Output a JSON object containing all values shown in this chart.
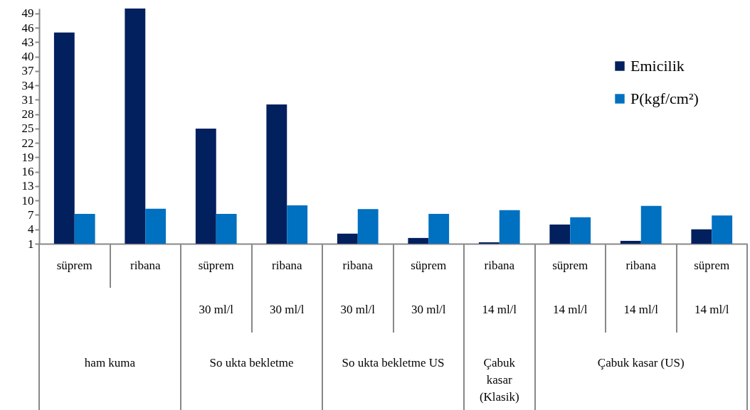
{
  "chart_data": {
    "type": "bar",
    "categories": [
      "süprem",
      "ribana",
      "süprem\n30 ml/l",
      "ribana\n30 ml/l",
      "ribana\n30 ml/l",
      "süprem\n30 ml/l",
      "ribana\n14 ml/l",
      "süprem\n14 ml/l",
      "ribana\n14 ml/l",
      "süprem\n14 ml/l"
    ],
    "series": [
      {
        "name": "Emicilik",
        "color": "#021f5e",
        "values": [
          45,
          50,
          25,
          30,
          3.1,
          2.2,
          1.3,
          5,
          1.6,
          4
        ]
      },
      {
        "name": "P(kgf/cm²)",
        "color": "#0070c0",
        "values": [
          7.2,
          8.3,
          7.2,
          9,
          8.2,
          7.2,
          8,
          6.5,
          8.9,
          6.9
        ]
      }
    ],
    "ylim": [
      1,
      50
    ],
    "yticks": [
      1,
      4,
      7,
      10,
      13,
      16,
      19,
      22,
      25,
      28,
      31,
      34,
      37,
      40,
      43,
      46,
      49
    ],
    "annotations": [
      "ham kuma",
      "So  ukta bekletme",
      "So  ukta bekletme US",
      "Çabuk kasar (Klasik)",
      "Çabuk kasar (US)"
    ],
    "legend": "top right",
    "grid": false
  }
}
